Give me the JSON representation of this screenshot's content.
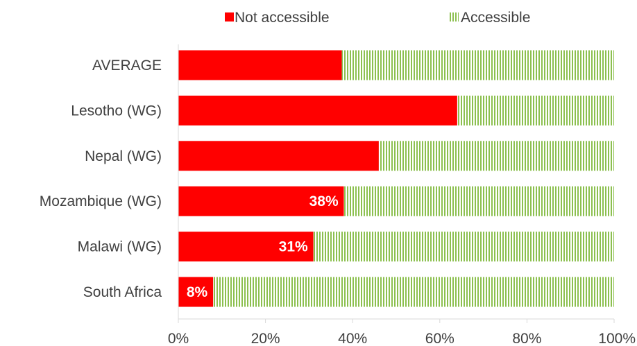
{
  "chart_data": {
    "type": "bar",
    "orientation": "horizontal",
    "stacked": "100%",
    "categories": [
      "AVERAGE",
      "Lesotho (WG)",
      "Nepal (WG)",
      "Mozambique (WG)",
      "Malawi (WG)",
      "South Africa"
    ],
    "series": [
      {
        "name": "Not accessible",
        "values": [
          37.5,
          64,
          46,
          38,
          31,
          8
        ],
        "data_labels": [
          "",
          "",
          "",
          "38%",
          "31%",
          "8%"
        ],
        "color": "#ff0000",
        "pattern": "solid"
      },
      {
        "name": "Accessible",
        "values": [
          62.5,
          36,
          54,
          62,
          69,
          92
        ],
        "color": "#70ad47",
        "pattern": "vertical-lines"
      }
    ],
    "xlim": [
      0,
      100
    ],
    "xticks": [
      "0%",
      "20%",
      "40%",
      "60%",
      "80%",
      "100%"
    ],
    "grid": false,
    "legend": "top"
  }
}
